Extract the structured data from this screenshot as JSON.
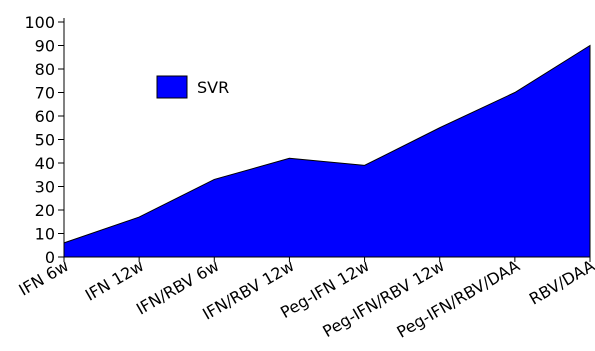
{
  "chart_data": {
    "type": "area",
    "categories": [
      "IFN 6w",
      "IFN 12w",
      "IFN/RBV 6w",
      "IFN/RBV 12w",
      "Peg-IFN 12w",
      "Peg-IFN/RBV 12w",
      "Peg-IFN/RBV/DAA",
      "RBV/DAA"
    ],
    "series": [
      {
        "name": "SVR",
        "values": [
          6,
          17,
          33,
          42,
          39,
          55,
          70,
          90
        ],
        "color": "#0000ff"
      }
    ],
    "ylim": [
      0,
      100
    ],
    "yticks": [
      0,
      10,
      20,
      30,
      40,
      50,
      60,
      70,
      80,
      90,
      100
    ],
    "xlabel": "",
    "ylabel": "",
    "title": "",
    "grid": false,
    "legend": "upper-left"
  }
}
